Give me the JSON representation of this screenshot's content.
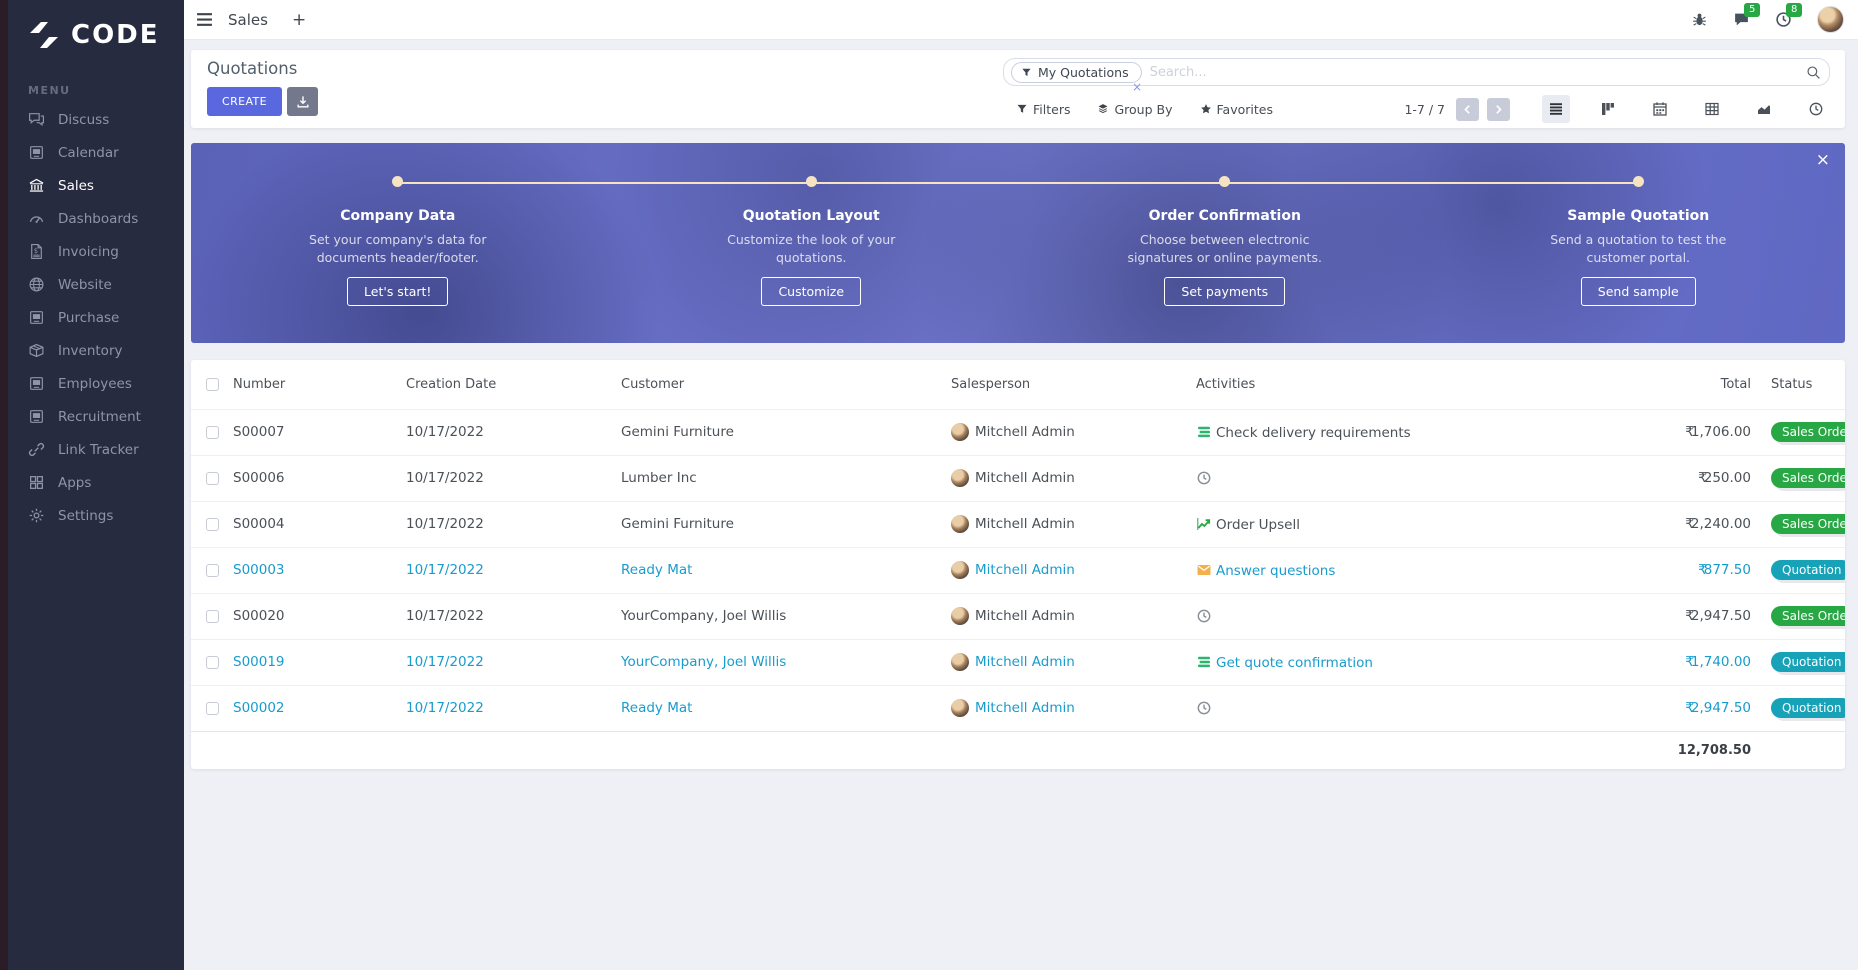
{
  "brand": {
    "name": "CODE"
  },
  "topbar": {
    "app_title": "Sales",
    "add_label": "+",
    "messages_count": "5",
    "activities_count": "8"
  },
  "sidebar": {
    "menu_label": "MENU",
    "items": [
      {
        "label": "Discuss",
        "icon": "discuss-chat-icon"
      },
      {
        "label": "Calendar",
        "icon": "image-placeholder-icon"
      },
      {
        "label": "Sales",
        "icon": "sales-bank-icon",
        "active": true
      },
      {
        "label": "Dashboards",
        "icon": "gauge-icon"
      },
      {
        "label": "Invoicing",
        "icon": "invoice-document-icon"
      },
      {
        "label": "Website",
        "icon": "globe-icon"
      },
      {
        "label": "Purchase",
        "icon": "image-placeholder-icon"
      },
      {
        "label": "Inventory",
        "icon": "box-icon"
      },
      {
        "label": "Employees",
        "icon": "image-placeholder-icon"
      },
      {
        "label": "Recruitment",
        "icon": "image-placeholder-icon"
      },
      {
        "label": "Link Tracker",
        "icon": "link-icon"
      },
      {
        "label": "Apps",
        "icon": "grid-icon"
      },
      {
        "label": "Settings",
        "icon": "gear-icon"
      }
    ]
  },
  "control_panel": {
    "title": "Quotations",
    "create_label": "CREATE",
    "search": {
      "facet": "My Quotations",
      "placeholder": "Search...",
      "remove_facet": "×"
    },
    "filters_label": "Filters",
    "group_by_label": "Group By",
    "favorites_label": "Favorites",
    "pager": "1-7 / 7",
    "views": [
      {
        "icon": "list-view-icon",
        "active": true
      },
      {
        "icon": "kanban-view-icon",
        "active": false
      },
      {
        "icon": "calendar-view-icon",
        "active": false
      },
      {
        "icon": "pivot-view-icon",
        "active": false
      },
      {
        "icon": "graph-view-icon",
        "active": false
      },
      {
        "icon": "activity-view-icon",
        "active": false
      }
    ]
  },
  "onboarding": {
    "close_label": "×",
    "steps": [
      {
        "title": "Company Data",
        "description": "Set your company's data for documents header/footer.",
        "button": "Let's start!"
      },
      {
        "title": "Quotation Layout",
        "description": "Customize the look of your quotations.",
        "button": "Customize"
      },
      {
        "title": "Order Confirmation",
        "description": "Choose between electronic signatures or online payments.",
        "button": "Set payments"
      },
      {
        "title": "Sample Quotation",
        "description": "Send a quotation to test the customer portal.",
        "button": "Send sample"
      }
    ]
  },
  "table": {
    "columns": [
      "Number",
      "Creation Date",
      "Customer",
      "Salesperson",
      "Activities",
      "Total",
      "Status"
    ],
    "currency": "₹",
    "rows": [
      {
        "number": "S00007",
        "date": "10/17/2022",
        "customer": "Gemini Furniture",
        "salesperson": "Mitchell Admin",
        "activity_icon": "tasks-icon",
        "activity": "Check delivery requirements",
        "total": "1,706.00",
        "status": "Sales Order",
        "status_color": "#28a745",
        "linked": false
      },
      {
        "number": "S00006",
        "date": "10/17/2022",
        "customer": "Lumber Inc",
        "salesperson": "Mitchell Admin",
        "activity_icon": "clock-icon",
        "activity": "",
        "total": "250.00",
        "status": "Sales Order",
        "status_color": "#28a745",
        "linked": false
      },
      {
        "number": "S00004",
        "date": "10/17/2022",
        "customer": "Gemini Furniture",
        "salesperson": "Mitchell Admin",
        "activity_icon": "chart-icon",
        "activity": "Order Upsell",
        "total": "2,240.00",
        "status": "Sales Order",
        "status_color": "#28a745",
        "linked": false
      },
      {
        "number": "S00003",
        "date": "10/17/2022",
        "customer": "Ready Mat",
        "salesperson": "Mitchell Admin",
        "activity_icon": "mail-icon",
        "activity": "Answer questions",
        "total": "877.50",
        "status": "Quotation",
        "status_color": "#17a2b8",
        "linked": true
      },
      {
        "number": "S00020",
        "date": "10/17/2022",
        "customer": "YourCompany, Joel Willis",
        "salesperson": "Mitchell Admin",
        "activity_icon": "clock-icon",
        "activity": "",
        "total": "2,947.50",
        "status": "Sales Order",
        "status_color": "#28a745",
        "linked": false
      },
      {
        "number": "S00019",
        "date": "10/17/2022",
        "customer": "YourCompany, Joel Willis",
        "salesperson": "Mitchell Admin",
        "activity_icon": "tasks-icon",
        "activity": "Get quote confirmation",
        "total": "1,740.00",
        "status": "Quotation Sent",
        "status_color": "#17a2b8",
        "linked": true
      },
      {
        "number": "S00002",
        "date": "10/17/2022",
        "customer": "Ready Mat",
        "salesperson": "Mitchell Admin",
        "activity_icon": "clock-icon",
        "activity": "",
        "total": "2,947.50",
        "status": "Quotation",
        "status_color": "#17a2b8",
        "linked": true
      }
    ],
    "sum_total": "12,708.50"
  },
  "colors": {
    "primary": "#5a68e0",
    "secondary": "#74788d",
    "link": "#189ccd",
    "badge_green": "#28a745",
    "badge_teal": "#17a2b8",
    "sidebar_bg": "#272b3f",
    "timeline": "#f5e3c1"
  }
}
